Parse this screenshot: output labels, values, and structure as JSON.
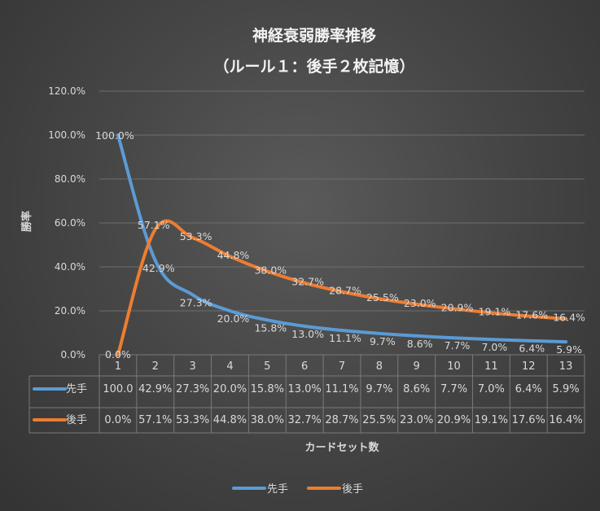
{
  "chart_data": {
    "type": "line",
    "title": "神経衰弱勝率推移",
    "subtitle": "（ルール１：後手２枚記憶）",
    "xlabel": "カードセット数",
    "ylabel": "勝率",
    "ylim": [
      0,
      120
    ],
    "yticks": [
      "0.0%",
      "20.0%",
      "40.0%",
      "60.0%",
      "80.0%",
      "100.0%",
      "120.0%"
    ],
    "grid": true,
    "legend": "bottom",
    "categories": [
      "1",
      "2",
      "3",
      "4",
      "5",
      "6",
      "7",
      "8",
      "9",
      "10",
      "11",
      "12",
      "13"
    ],
    "series": [
      {
        "name": "先手",
        "color": "#5b9bd5",
        "values": [
          100.0,
          42.9,
          27.3,
          20.0,
          15.8,
          13.0,
          11.1,
          9.7,
          8.6,
          7.7,
          7.0,
          6.4,
          5.9
        ],
        "labels": [
          "100.0%",
          "42.9%",
          "27.3%",
          "20.0%",
          "15.8%",
          "13.0%",
          "11.1%",
          "9.7%",
          "8.6%",
          "7.7%",
          "7.0%",
          "6.4%",
          "5.9%"
        ],
        "table": [
          "100.0",
          "42.9%",
          "27.3%",
          "20.0%",
          "15.8%",
          "13.0%",
          "11.1%",
          "9.7%",
          "8.6%",
          "7.7%",
          "7.0%",
          "6.4%",
          "5.9%"
        ]
      },
      {
        "name": "後手",
        "color": "#ed7d31",
        "values": [
          0.0,
          57.1,
          53.3,
          44.8,
          38.0,
          32.7,
          28.7,
          25.5,
          23.0,
          20.9,
          19.1,
          17.6,
          16.4
        ],
        "labels": [
          "0.0%",
          "57.1%",
          "53.3%",
          "44.8%",
          "38.0%",
          "32.7%",
          "28.7%",
          "25.5%",
          "23.0%",
          "20.9%",
          "19.1%",
          "17.6%",
          "16.4%"
        ],
        "table": [
          "0.0%",
          "57.1%",
          "53.3%",
          "44.8%",
          "38.0%",
          "32.7%",
          "28.7%",
          "25.5%",
          "23.0%",
          "20.9%",
          "19.1%",
          "17.6%",
          "16.4%"
        ]
      }
    ]
  }
}
